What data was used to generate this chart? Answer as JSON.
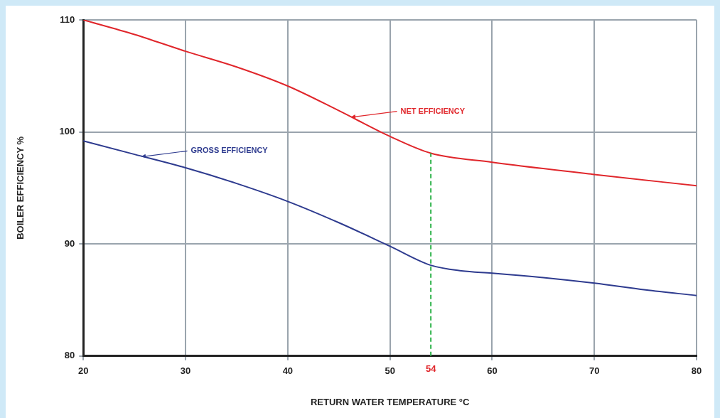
{
  "chart_data": {
    "type": "line",
    "xlabel": "RETURN WATER TEMPERATURE °C",
    "ylabel": "BOILER EFFICIENCY %",
    "series": [
      {
        "name": "NET EFFICIENCY",
        "color": "#e0262b",
        "x": [
          20,
          25,
          30,
          35,
          40,
          45,
          50,
          54,
          60,
          70,
          80
        ],
        "values": [
          110,
          108.7,
          107.2,
          105.8,
          104.1,
          101.9,
          99.6,
          98.1,
          97.3,
          96.2,
          95.2
        ]
      },
      {
        "name": "GROSS EFFICIENCY",
        "color": "#2e3b8f",
        "x": [
          20,
          25,
          30,
          35,
          40,
          45,
          50,
          54,
          57,
          60,
          65,
          70,
          75,
          80
        ],
        "values": [
          99.2,
          98,
          96.8,
          95.4,
          93.8,
          91.9,
          89.8,
          88.1,
          87.6,
          87.4,
          87,
          86.5,
          85.9,
          85.4
        ]
      }
    ],
    "xlim": [
      20,
      80
    ],
    "xticks": [
      20,
      30,
      40,
      50,
      60,
      70,
      80
    ],
    "ylim": [
      80,
      110
    ],
    "yticks": [
      80,
      90,
      100,
      110
    ],
    "ref_lines": [
      {
        "axis": "x",
        "value": 54,
        "label": "54",
        "color": "#2db34a",
        "line_style": "dashed"
      }
    ],
    "grid": true,
    "legend": false,
    "marker": "none",
    "line_style": "solid"
  }
}
